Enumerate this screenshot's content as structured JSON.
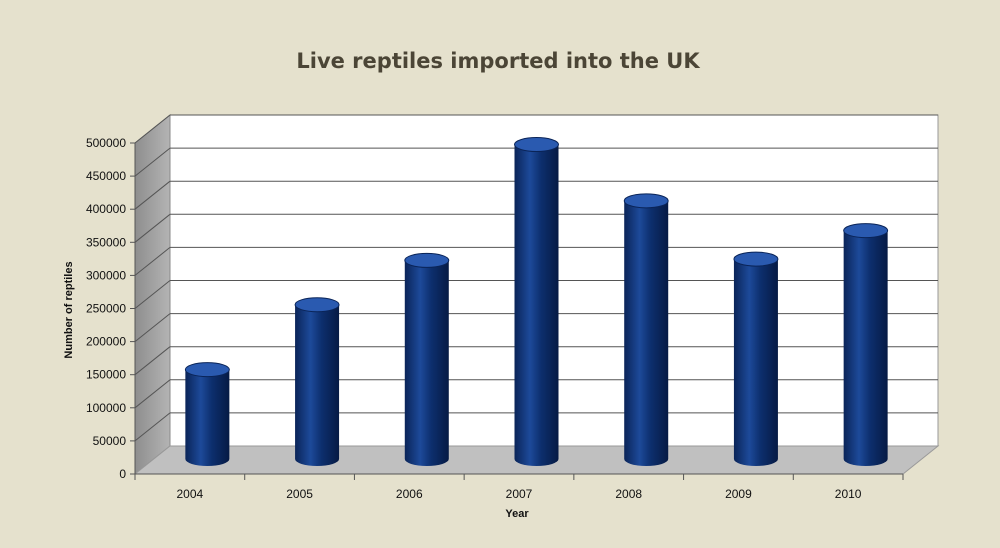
{
  "chart_data": {
    "type": "bar",
    "style": "3d-cylinder",
    "title": "Live reptiles imported into the UK",
    "xlabel": "Year",
    "ylabel": "Number of reptiles",
    "categories": [
      "2004",
      "2005",
      "2006",
      "2007",
      "2008",
      "2009",
      "2010"
    ],
    "series": [
      {
        "values": [
          135000,
          233000,
          300000,
          475000,
          390000,
          302000,
          345000
        ]
      }
    ],
    "ylim": [
      0,
      500000
    ],
    "yticks": [
      0,
      50000,
      100000,
      150000,
      200000,
      250000,
      300000,
      350000,
      400000,
      450000,
      500000
    ],
    "grid": true,
    "legend": "none",
    "colors": {
      "bar": "#0d2f6e",
      "bar_highlight": "#2a5ab0",
      "background": "#e5e1cd",
      "wall": "#ffffff",
      "side_wall": "#a5a5a5",
      "floor": "#c0c0c0"
    }
  }
}
